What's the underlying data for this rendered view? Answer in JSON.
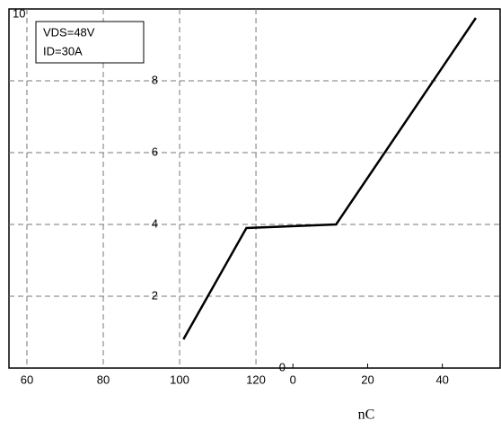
{
  "chart_data": {
    "type": "line",
    "annotations": [
      "VDS=48V",
      "ID=30A"
    ],
    "x_label": "nC",
    "x": [
      101,
      117.5,
      141,
      177.6
    ],
    "series": [
      {
        "color": "#000000",
        "values": [
          0.8,
          3.9,
          4.0,
          9.75
        ]
      }
    ],
    "xlim": [
      55.3,
      184.2
    ],
    "xticks": [
      60,
      80,
      100,
      120
    ],
    "x2lim": [
      -76,
      55.7
    ],
    "x2ticks": [
      0,
      20,
      40
    ],
    "ylim": [
      0,
      10
    ],
    "yticks": [
      0,
      2,
      4,
      6,
      8,
      10
    ],
    "grid": true
  }
}
